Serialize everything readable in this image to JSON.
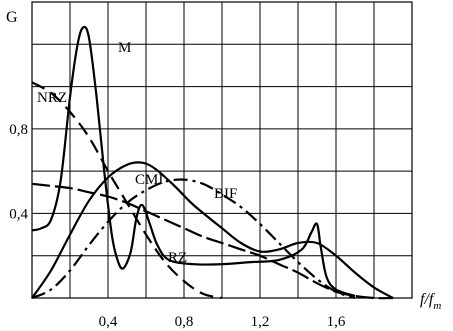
{
  "chart_data": {
    "type": "line",
    "ylabel": "G",
    "xlabel_main": "f/f",
    "xlabel_sub": "m",
    "xlim": [
      0,
      2.0
    ],
    "ylim": [
      0,
      1.4
    ],
    "x_ticks": [
      0.4,
      0.8,
      1.2,
      1.6
    ],
    "x_tick_labels": [
      "0,4",
      "0,8",
      "1,2",
      "1,6"
    ],
    "y_ticks": [
      0.4,
      0.8
    ],
    "y_tick_labels": [
      "0,4",
      "0,8"
    ],
    "grid": true,
    "series": [
      {
        "name": "M",
        "style": "solid",
        "points": [
          [
            0,
            0.32
          ],
          [
            0.05,
            0.33
          ],
          [
            0.1,
            0.37
          ],
          [
            0.15,
            0.55
          ],
          [
            0.2,
            0.95
          ],
          [
            0.24,
            1.2
          ],
          [
            0.27,
            1.28
          ],
          [
            0.3,
            1.23
          ],
          [
            0.34,
            0.95
          ],
          [
            0.38,
            0.6
          ],
          [
            0.42,
            0.3
          ],
          [
            0.45,
            0.18
          ],
          [
            0.48,
            0.14
          ],
          [
            0.52,
            0.22
          ],
          [
            0.55,
            0.38
          ],
          [
            0.58,
            0.44
          ],
          [
            0.62,
            0.35
          ],
          [
            0.66,
            0.25
          ],
          [
            0.72,
            0.18
          ],
          [
            0.85,
            0.16
          ],
          [
            1.0,
            0.16
          ],
          [
            1.15,
            0.17
          ],
          [
            1.3,
            0.18
          ],
          [
            1.42,
            0.23
          ],
          [
            1.47,
            0.31
          ],
          [
            1.5,
            0.35
          ],
          [
            1.52,
            0.24
          ],
          [
            1.55,
            0.1
          ],
          [
            1.6,
            0.04
          ],
          [
            1.7,
            0.01
          ]
        ]
      },
      {
        "name": "NRZ",
        "style": "dashed",
        "points": [
          [
            0,
            1.02
          ],
          [
            0.1,
            0.97
          ],
          [
            0.2,
            0.88
          ],
          [
            0.3,
            0.76
          ],
          [
            0.4,
            0.6
          ],
          [
            0.5,
            0.45
          ],
          [
            0.6,
            0.3
          ],
          [
            0.7,
            0.17
          ],
          [
            0.8,
            0.08
          ],
          [
            0.9,
            0.02
          ],
          [
            1.0,
            0
          ]
        ]
      },
      {
        "name": "CMI",
        "style": "solid",
        "points": [
          [
            0,
            0
          ],
          [
            0.1,
            0.13
          ],
          [
            0.2,
            0.3
          ],
          [
            0.3,
            0.46
          ],
          [
            0.4,
            0.57
          ],
          [
            0.5,
            0.63
          ],
          [
            0.58,
            0.64
          ],
          [
            0.65,
            0.61
          ],
          [
            0.75,
            0.53
          ],
          [
            0.85,
            0.44
          ],
          [
            1.0,
            0.33
          ],
          [
            1.1,
            0.26
          ],
          [
            1.2,
            0.22
          ],
          [
            1.3,
            0.23
          ],
          [
            1.4,
            0.26
          ],
          [
            1.5,
            0.26
          ],
          [
            1.6,
            0.2
          ],
          [
            1.7,
            0.12
          ],
          [
            1.8,
            0.05
          ],
          [
            1.9,
            0
          ]
        ]
      },
      {
        "name": "BIF",
        "style": "dashdot",
        "points": [
          [
            0,
            0
          ],
          [
            0.1,
            0.04
          ],
          [
            0.2,
            0.13
          ],
          [
            0.3,
            0.25
          ],
          [
            0.4,
            0.36
          ],
          [
            0.5,
            0.45
          ],
          [
            0.6,
            0.51
          ],
          [
            0.7,
            0.55
          ],
          [
            0.8,
            0.56
          ],
          [
            0.9,
            0.54
          ],
          [
            1.0,
            0.49
          ],
          [
            1.1,
            0.43
          ],
          [
            1.2,
            0.35
          ],
          [
            1.3,
            0.26
          ],
          [
            1.4,
            0.17
          ],
          [
            1.5,
            0.09
          ],
          [
            1.6,
            0.03
          ],
          [
            1.7,
            0
          ]
        ]
      },
      {
        "name": "RZ",
        "style": "longdash",
        "points": [
          [
            0,
            0.54
          ],
          [
            0.1,
            0.53
          ],
          [
            0.2,
            0.52
          ],
          [
            0.3,
            0.5
          ],
          [
            0.4,
            0.48
          ],
          [
            0.5,
            0.45
          ],
          [
            0.6,
            0.41
          ],
          [
            0.7,
            0.37
          ],
          [
            0.8,
            0.33
          ],
          [
            0.9,
            0.29
          ],
          [
            1.0,
            0.26
          ],
          [
            1.1,
            0.23
          ],
          [
            1.2,
            0.2
          ],
          [
            1.3,
            0.16
          ],
          [
            1.4,
            0.12
          ],
          [
            1.5,
            0.07
          ],
          [
            1.6,
            0.03
          ],
          [
            1.7,
            0.01
          ],
          [
            1.8,
            0
          ],
          [
            1.9,
            0
          ]
        ]
      }
    ],
    "annotations": [
      {
        "text": "M",
        "series": "M"
      },
      {
        "text": "NRZ",
        "series": "NRZ"
      },
      {
        "text": "CMI",
        "series": "CMI"
      },
      {
        "text": "BIF",
        "series": "BIF"
      },
      {
        "text": "RZ",
        "series": "RZ"
      }
    ]
  }
}
